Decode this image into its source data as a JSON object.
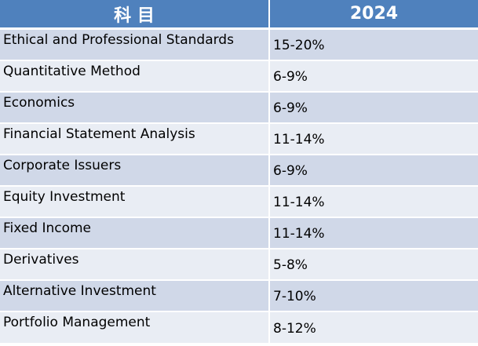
{
  "table": {
    "header": {
      "subject": "科 目",
      "year": "2024"
    },
    "rows": [
      {
        "subject": "Ethical and Professional Standards",
        "weight": "15-20%"
      },
      {
        "subject": "Quantitative Method",
        "weight": "6-9%"
      },
      {
        "subject": "Economics",
        "weight": "6-9%"
      },
      {
        "subject": "Financial Statement Analysis",
        "weight": "11-14%"
      },
      {
        "subject": "Corporate Issuers",
        "weight": "6-9%"
      },
      {
        "subject": "Equity Investment",
        "weight": "11-14%"
      },
      {
        "subject": "Fixed Income",
        "weight": "11-14%"
      },
      {
        "subject": "Derivatives",
        "weight": "5-8%"
      },
      {
        "subject": "Alternative Investment",
        "weight": "7-10%"
      },
      {
        "subject": "Portfolio Management",
        "weight": "8-12%"
      }
    ]
  },
  "colors": {
    "header_bg": "#4f81bd",
    "row_odd_bg": "#d0d8e8",
    "row_even_bg": "#e9edf4"
  }
}
